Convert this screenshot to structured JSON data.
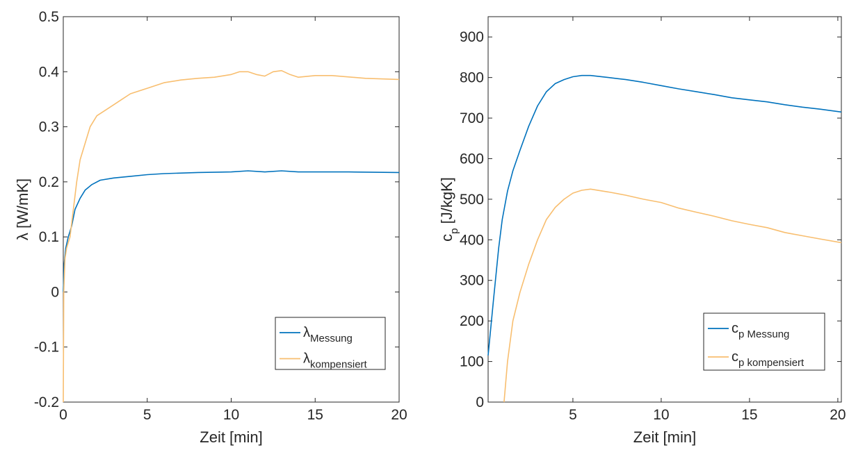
{
  "chart_data": [
    {
      "type": "line",
      "xlabel": "Zeit [min]",
      "ylabel": "λ [W/mK]",
      "xlim": [
        0,
        20
      ],
      "ylim": [
        -0.2,
        0.5
      ],
      "xticks": [
        0,
        5,
        10,
        15,
        20
      ],
      "xtick_labels": [
        "0",
        "5",
        "10",
        "15",
        "20"
      ],
      "yticks": [
        -0.2,
        -0.1,
        0,
        0.1,
        0.2,
        0.3,
        0.4,
        0.5
      ],
      "ytick_labels": [
        "-0.2",
        "-0.1",
        "0",
        "0.1",
        "0.2",
        "0.3",
        "0.4",
        "0.5"
      ],
      "grid": false,
      "legend_position": "bottom-right",
      "series": [
        {
          "name": "λMessung",
          "label_main": "λ",
          "label_sub": "Messung",
          "color": "#0072BD",
          "x": [
            0,
            0.05,
            0.15,
            0.3,
            0.5,
            0.7,
            1.0,
            1.3,
            1.7,
            2.2,
            3.0,
            4.0,
            5.0,
            6.0,
            8.0,
            10.0,
            11.0,
            12.0,
            13.0,
            14.0,
            15.0,
            17.0,
            20.0
          ],
          "y": [
            0.0,
            0.05,
            0.08,
            0.1,
            0.12,
            0.15,
            0.17,
            0.185,
            0.195,
            0.203,
            0.207,
            0.21,
            0.213,
            0.215,
            0.217,
            0.218,
            0.22,
            0.218,
            0.22,
            0.218,
            0.218,
            0.218,
            0.217
          ]
        },
        {
          "name": "λkompensiert",
          "label_main": "λ",
          "label_sub": "kompensiert",
          "color": "#F8BE6F",
          "x": [
            0,
            0.03,
            0.1,
            0.2,
            0.4,
            0.6,
            0.8,
            1.0,
            1.3,
            1.6,
            2.0,
            2.5,
            3.0,
            3.5,
            4.0,
            5.0,
            6.0,
            7.0,
            8.0,
            9.0,
            10.0,
            10.5,
            11.0,
            11.5,
            12.0,
            12.5,
            13.0,
            13.5,
            14.0,
            15.0,
            16.0,
            18.0,
            20.0
          ],
          "y": [
            -0.2,
            0.0,
            0.06,
            0.08,
            0.1,
            0.15,
            0.2,
            0.24,
            0.27,
            0.3,
            0.32,
            0.33,
            0.34,
            0.35,
            0.36,
            0.37,
            0.38,
            0.385,
            0.388,
            0.39,
            0.395,
            0.4,
            0.4,
            0.395,
            0.392,
            0.4,
            0.402,
            0.395,
            0.39,
            0.393,
            0.393,
            0.388,
            0.386
          ]
        }
      ]
    },
    {
      "type": "line",
      "xlabel": "Zeit [min]",
      "ylabel": "cp [J/kgK]",
      "ylabel_main": "c",
      "ylabel_sub": "p",
      "ylabel_rest": " [J/kgK]",
      "xlim": [
        0.2,
        20.2
      ],
      "ylim": [
        0,
        950
      ],
      "xticks": [
        5,
        10,
        15,
        20
      ],
      "xtick_labels": [
        "5",
        "10",
        "15",
        "20"
      ],
      "yticks": [
        0,
        100,
        200,
        300,
        400,
        500,
        600,
        700,
        800,
        900
      ],
      "ytick_labels": [
        "0",
        "100",
        "200",
        "300",
        "400",
        "500",
        "600",
        "700",
        "800",
        "900"
      ],
      "grid": false,
      "legend_position": "bottom-right",
      "series": [
        {
          "name": "cp Messung",
          "label_main": "c",
          "label_sub": "p Messung",
          "color": "#0072BD",
          "x": [
            0.2,
            0.5,
            0.8,
            1.0,
            1.3,
            1.6,
            2.0,
            2.5,
            3.0,
            3.5,
            4.0,
            4.5,
            5.0,
            5.5,
            6.0,
            7.0,
            8.0,
            9.0,
            10.0,
            11.0,
            12.0,
            13.0,
            14.0,
            15.0,
            16.0,
            17.0,
            18.0,
            19.0,
            20.2
          ],
          "y": [
            115,
            250,
            380,
            450,
            520,
            570,
            620,
            680,
            730,
            765,
            785,
            795,
            802,
            805,
            805,
            800,
            795,
            788,
            780,
            772,
            765,
            758,
            750,
            745,
            740,
            733,
            727,
            722,
            715
          ]
        },
        {
          "name": "cp kompensiert",
          "label_main": "c",
          "label_sub": "p kompensiert",
          "color": "#F8BE6F",
          "x": [
            1.1,
            1.3,
            1.6,
            2.0,
            2.5,
            3.0,
            3.5,
            4.0,
            4.5,
            5.0,
            5.5,
            6.0,
            7.0,
            8.0,
            9.0,
            10.0,
            11.0,
            12.0,
            13.0,
            14.0,
            15.0,
            16.0,
            17.0,
            18.0,
            19.0,
            20.2
          ],
          "y": [
            0,
            100,
            200,
            270,
            340,
            400,
            450,
            480,
            500,
            515,
            522,
            525,
            518,
            510,
            500,
            492,
            478,
            468,
            458,
            447,
            438,
            430,
            418,
            410,
            402,
            393
          ]
        }
      ]
    }
  ]
}
